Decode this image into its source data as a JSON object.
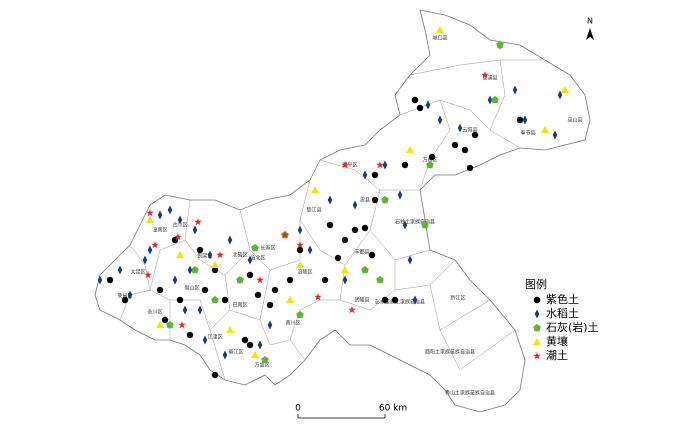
{
  "map": {
    "north": "N",
    "labels": [
      "城口县",
      "巫溪县",
      "巫山县",
      "奉节县",
      "云阳县",
      "万州区",
      "梁平区",
      "忠县",
      "石柱土家族自治县",
      "垫江县",
      "丰都县",
      "长寿区",
      "涪陵区",
      "武隆县",
      "彭水苗族土家族自治县",
      "黔江区",
      "酉阳土家族苗族自治县",
      "秀山土家族苗族自治县",
      "南川区",
      "綦江区",
      "万盛区",
      "江津区",
      "永川区",
      "荣昌区",
      "大足区",
      "合川区",
      "潼南区",
      "铜梁区",
      "璧山区",
      "北碚区",
      "渝北区",
      "巴南区"
    ],
    "legend": {
      "title": "图例",
      "items": [
        "紫色土",
        "水稻土",
        "石灰(岩)土",
        "黄壤",
        "潮土"
      ]
    },
    "scale": {
      "start": "0",
      "end": "60 km"
    }
  }
}
